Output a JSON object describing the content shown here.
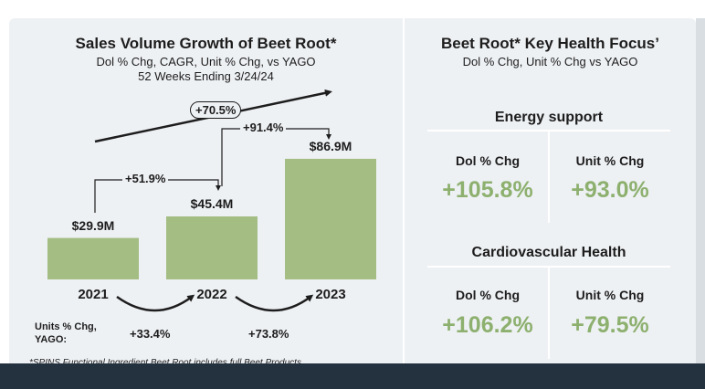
{
  "left": {
    "title": "Sales Volume Growth of Beet Root*",
    "subtitle1": "Dol % Chg, CAGR, Unit % Chg, vs YAGO",
    "subtitle2": "52 Weeks Ending 3/24/24",
    "cagr_label": "+70.5%",
    "dollar_growth_2021_2022": "+51.9%",
    "dollar_growth_2022_2023": "+91.4%",
    "units_label_line1": "Units % Chg,",
    "units_label_line2": "YAGO:",
    "units_chg_2021_2022": "+33.4%",
    "units_chg_2022_2023": "+73.8%",
    "footnote": "*SPINS Functional Ingredient Beet Root includes full Beet Products"
  },
  "right": {
    "title": "Beet Root* Key Health Focus’",
    "subtitle": "Dol % Chg, Unit % Chg vs YAGO",
    "sections": [
      {
        "name": "Energy support",
        "dol_label": "Dol % Chg",
        "dol_value": "+105.8%",
        "unit_label": "Unit % Chg",
        "unit_value": "+93.0%"
      },
      {
        "name": "Cardiovascular Health",
        "dol_label": "Dol % Chg",
        "dol_value": "+106.2%",
        "unit_label": "Unit % Chg",
        "unit_value": "+79.5%"
      }
    ]
  },
  "colors": {
    "bar": "#a3bd83",
    "accent_green": "#8db06f",
    "panel": "#eef1f4",
    "footer": "#243240"
  },
  "chart_data": {
    "type": "bar",
    "title": "Sales Volume Growth of Beet Root*",
    "categories": [
      "2021",
      "2022",
      "2023"
    ],
    "values": [
      29.9,
      45.4,
      86.9
    ],
    "value_labels": [
      "$29.9M",
      "$45.4M",
      "$86.9M"
    ],
    "ylim": [
      0,
      100
    ]
  }
}
